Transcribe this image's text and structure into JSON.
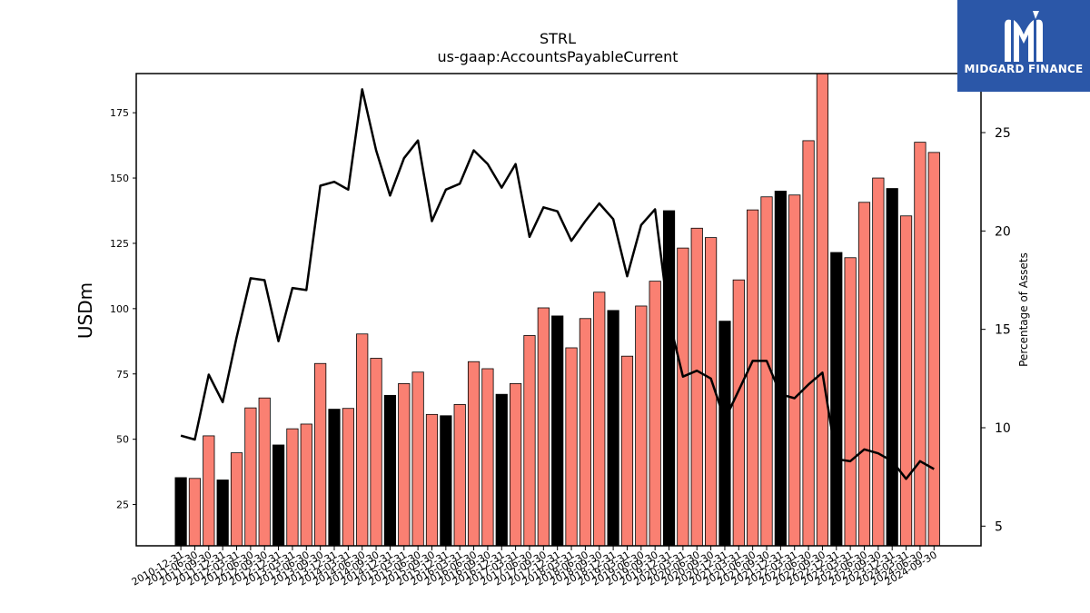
{
  "brand": {
    "name": "MIDGARD FINANCE",
    "logo_icon": "midgard-m-icon",
    "color": "#2b57a8"
  },
  "colors": {
    "bar_default": "#fa8072",
    "bar_highlight": "#000000",
    "line": "#000000"
  },
  "chart_data": {
    "type": "bar",
    "title": "STRL",
    "subtitle": "us-gaap:AccountsPayableCurrent",
    "ylabel": "USDm",
    "y2label": "Percentage of Assets",
    "ylim": [
      9.2,
      190
    ],
    "y2lim": [
      4.0,
      28.0
    ],
    "yticks": [
      25,
      50,
      75,
      100,
      125,
      150,
      175
    ],
    "y2ticks": [
      5,
      10,
      15,
      20,
      25
    ],
    "grid": false,
    "categories": [
      "2010-12-31",
      "2011-06-30",
      "2011-09-30",
      "2011-12-31",
      "2012-03-31",
      "2012-06-30",
      "2012-09-30",
      "2012-12-31",
      "2013-03-31",
      "2013-06-30",
      "2013-09-30",
      "2013-12-31",
      "2014-03-31",
      "2014-06-30",
      "2014-09-30",
      "2014-12-31",
      "2015-03-31",
      "2015-06-30",
      "2015-09-30",
      "2015-12-31",
      "2016-03-31",
      "2016-06-30",
      "2016-09-30",
      "2016-12-31",
      "2017-03-31",
      "2017-06-30",
      "2017-09-30",
      "2017-12-31",
      "2018-03-31",
      "2018-06-30",
      "2018-09-30",
      "2018-12-31",
      "2019-03-31",
      "2019-06-30",
      "2019-09-30",
      "2019-12-31",
      "2020-03-31",
      "2020-06-30",
      "2020-09-30",
      "2020-12-31",
      "2021-03-31",
      "2021-06-30",
      "2021-09-30",
      "2021-12-31",
      "2022-03-31",
      "2022-06-30",
      "2022-09-30",
      "2022-12-31",
      "2023-03-31",
      "2023-06-30",
      "2023-09-30",
      "2023-12-31",
      "2024-03-31",
      "2024-06-30",
      "2024-09-30"
    ],
    "visible_xtick_labels": [
      "2010-12-31",
      "2011-06-30",
      "2011-09-30",
      "2011-12-31",
      "2012-03-31",
      "2012-06-30",
      "2012-09-30",
      "2012-12-31",
      "2013-03-31",
      "2013-06-30",
      "2013-09-30",
      "2013-12-31",
      "2014-03-31",
      "2014-06-30",
      "2014-09-30",
      "2014-12-31",
      "2015-03-31",
      "2015-06-30",
      "2015-09-30",
      "2015-12-31",
      "2016-03-31",
      "2016-06-30",
      "2016-09-30",
      "2016-12-31",
      "2017-03-31",
      "2017-06-30",
      "2017-09-30",
      "2017-12-31",
      "2018-03-31",
      "2018-06-30",
      "2018-09-30",
      "2018-12-31",
      "2019-03-31",
      "2019-06-30",
      "2019-09-30",
      "2019-12-31",
      "2020-03-31",
      "2020-06-30",
      "2020-09-30",
      "2020-12-31",
      "2021-03-31",
      "2021-06-30",
      "2021-09-30",
      "2021-12-31",
      "2022-03-31",
      "2022-06-30",
      "2022-09-30",
      "2022-12-31",
      "2023-03-31",
      "2023-06-30",
      "2023-09-30",
      "2023-12-31",
      "2024-03-31",
      "2024-06-30",
      "2024-09-30"
    ],
    "series": [
      {
        "axis": "left",
        "kind": "bar",
        "values": [
          35.3,
          35.0,
          51.3,
          34.4,
          44.8,
          62.0,
          65.8,
          47.8,
          54.0,
          55.8,
          79.0,
          61.5,
          61.8,
          90.3,
          81.0,
          66.8,
          71.3,
          75.7,
          59.5,
          59.0,
          63.3,
          79.7,
          77.0,
          67.2,
          71.3,
          89.7,
          100.3,
          97.2,
          85.0,
          96.2,
          106.3,
          99.3,
          81.8,
          101.0,
          110.5,
          137.5,
          123.2,
          130.8,
          127.2,
          95.2,
          111.0,
          137.8,
          142.8,
          145.0,
          143.5,
          164.3,
          190.0,
          121.5,
          119.5,
          140.7,
          150.0,
          146.0,
          135.5,
          163.7,
          159.8
        ],
        "highlight": [
          true,
          false,
          false,
          true,
          false,
          false,
          false,
          true,
          false,
          false,
          false,
          true,
          false,
          false,
          false,
          true,
          false,
          false,
          false,
          true,
          false,
          false,
          false,
          true,
          false,
          false,
          false,
          true,
          false,
          false,
          false,
          true,
          false,
          false,
          false,
          true,
          false,
          false,
          false,
          true,
          false,
          false,
          false,
          true,
          false,
          false,
          false,
          true,
          false,
          false,
          false,
          true,
          false,
          false,
          false
        ]
      },
      {
        "axis": "right",
        "kind": "line",
        "values": [
          9.6,
          9.4,
          12.7,
          11.3,
          14.6,
          17.6,
          17.5,
          14.4,
          17.1,
          17.0,
          22.3,
          22.5,
          22.1,
          27.2,
          24.1,
          21.8,
          23.7,
          24.6,
          20.5,
          22.1,
          22.4,
          24.1,
          23.4,
          22.2,
          23.4,
          19.7,
          21.2,
          21.0,
          19.5,
          20.5,
          21.4,
          20.6,
          17.7,
          20.3,
          21.1,
          15.5,
          12.6,
          12.9,
          12.5,
          10.4,
          11.9,
          13.4,
          13.4,
          11.7,
          11.5,
          12.2,
          12.8,
          8.4,
          8.3,
          8.9,
          8.7,
          8.3,
          7.4,
          8.3,
          7.9
        ]
      }
    ]
  }
}
